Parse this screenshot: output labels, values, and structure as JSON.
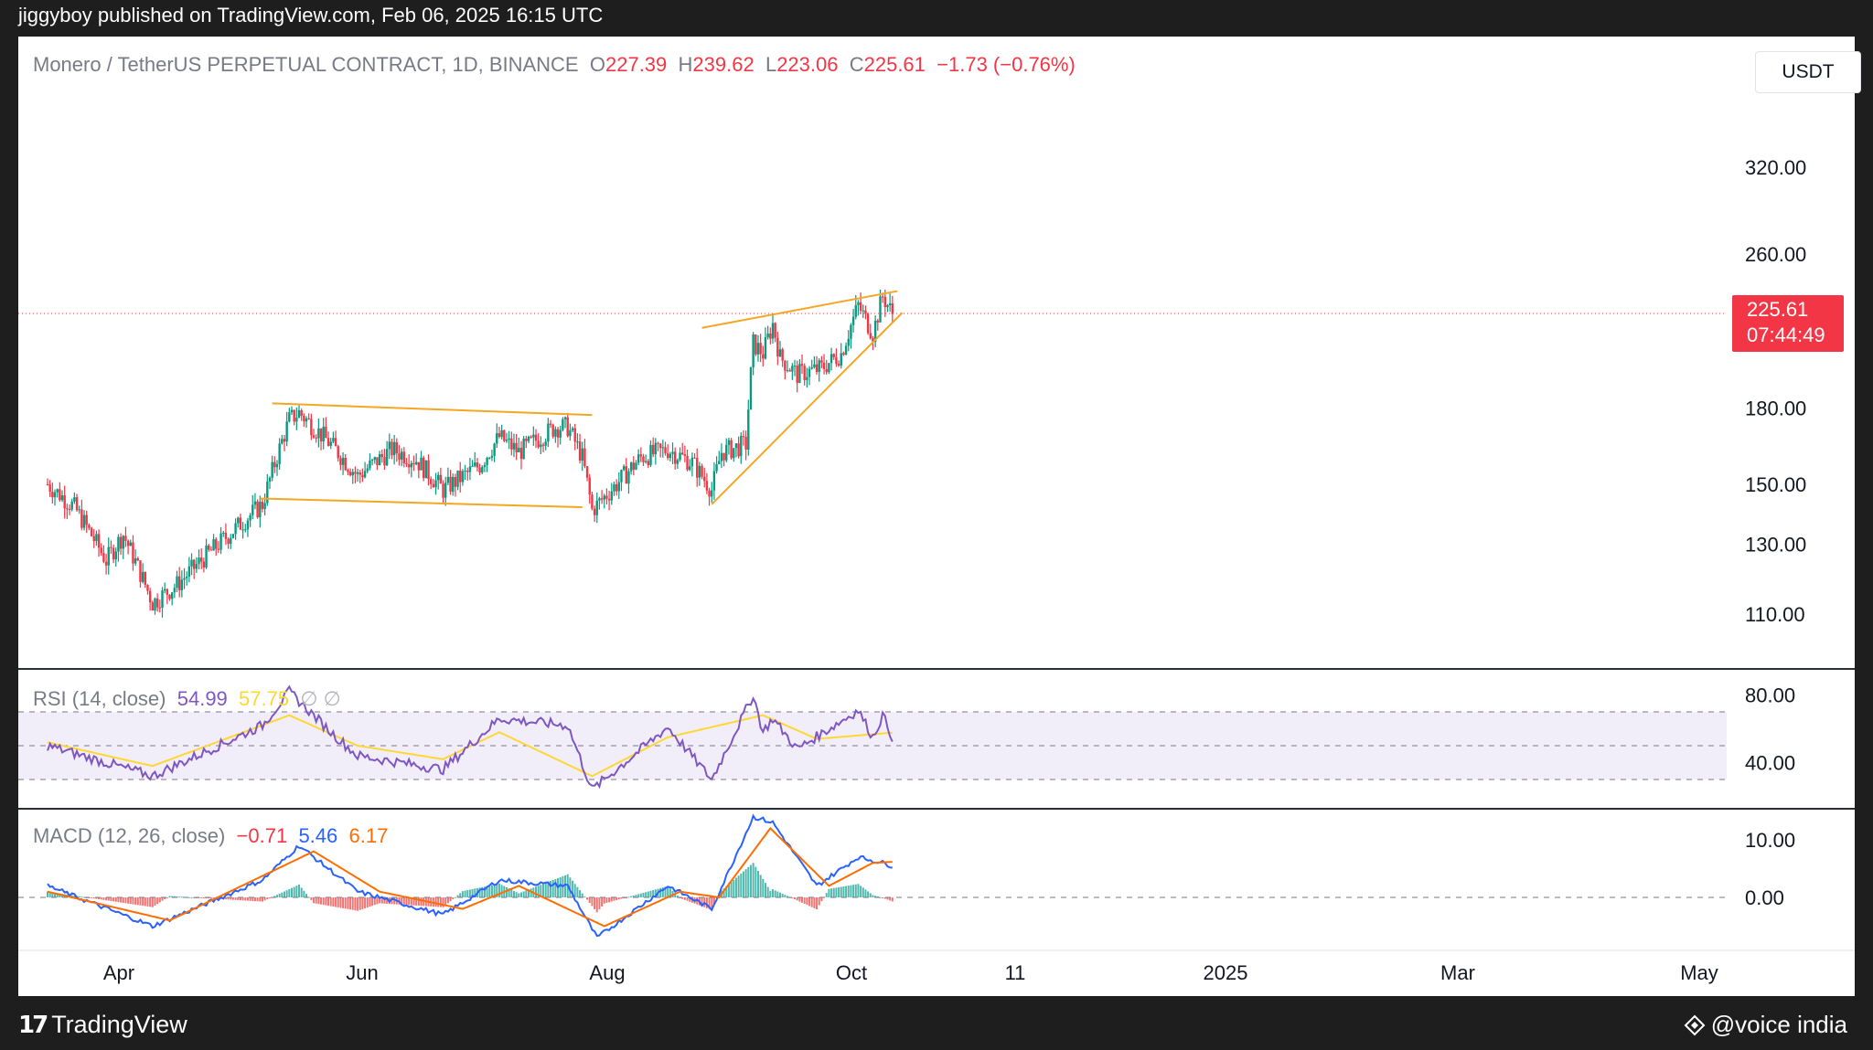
{
  "header": {
    "publisher_line": "jiggyboy published on TradingView.com, Feb 06, 2025 16:15 UTC"
  },
  "footer": {
    "brand": "TradingView",
    "credit": "@voice india"
  },
  "currency_button": "USDT",
  "price_legend": {
    "symbol": "Monero / TetherUS PERPETUAL CONTRACT, 1D, BINANCE",
    "o_label": "O",
    "o": "227.39",
    "h_label": "H",
    "h": "239.62",
    "l_label": "L",
    "l": "223.06",
    "c_label": "C",
    "c": "225.61",
    "change": "−1.73 (−0.76%)"
  },
  "rsi_legend": {
    "label": "RSI (14, close)",
    "rsi": "54.99",
    "sma": "57.75",
    "extra": "∅ ∅"
  },
  "macd_legend": {
    "label": "MACD (12, 26, close)",
    "hist": "−0.71",
    "macd": "5.46",
    "signal": "6.17"
  },
  "last_price_tag": {
    "price": "225.61",
    "countdown": "07:44:49"
  },
  "colors": {
    "up": "#089981",
    "down": "#f23645",
    "trendline": "#f5a623",
    "rsi": "#7e57c2",
    "rsi_ma": "#fdd835",
    "macd": "#2962ff",
    "signal": "#ff6d00"
  },
  "chart_data": [
    {
      "type": "candlestick",
      "price_axis": {
        "scale": "log",
        "ticks": [
          "320.00",
          "260.00",
          "180.00",
          "150.00",
          "130.00",
          "110.00"
        ]
      },
      "time_axis": [
        "Apr",
        "Jun",
        "Aug",
        "Oct",
        "11",
        "2025",
        "Mar",
        "May"
      ],
      "series": [
        {
          "name": "Monero / TetherUS PERPETUAL CONTRACT, 1D, BINANCE",
          "keypoints": [
            {
              "date": "2024-03-01",
              "close": 150
            },
            {
              "date": "2024-03-12",
              "close": 142
            },
            {
              "date": "2024-03-25",
              "close": 125
            },
            {
              "date": "2024-04-01",
              "close": 133
            },
            {
              "date": "2024-04-13",
              "close": 113
            },
            {
              "date": "2024-04-23",
              "close": 118
            },
            {
              "date": "2024-05-10",
              "close": 130
            },
            {
              "date": "2024-05-28",
              "close": 143
            },
            {
              "date": "2024-06-08",
              "close": 175
            },
            {
              "date": "2024-06-12",
              "close": 178
            },
            {
              "date": "2024-06-25",
              "close": 165
            },
            {
              "date": "2024-07-06",
              "close": 153
            },
            {
              "date": "2024-07-20",
              "close": 163
            },
            {
              "date": "2024-07-30",
              "close": 159
            },
            {
              "date": "2024-08-10",
              "close": 148
            },
            {
              "date": "2024-08-25",
              "close": 157
            },
            {
              "date": "2024-09-02",
              "close": 168
            },
            {
              "date": "2024-09-10",
              "close": 162
            },
            {
              "date": "2024-09-25",
              "close": 172
            },
            {
              "date": "2024-09-30",
              "close": 172
            },
            {
              "date": "2024-10-06",
              "close": 160
            },
            {
              "date": "2024-10-10",
              "close": 141
            },
            {
              "date": "2024-10-20",
              "close": 150
            },
            {
              "date": "2024-10-30",
              "close": 160
            },
            {
              "date": "2024-11-10",
              "close": 163
            },
            {
              "date": "2024-11-20",
              "close": 158
            },
            {
              "date": "2024-11-28",
              "close": 148
            },
            {
              "date": "2024-12-02",
              "close": 162
            },
            {
              "date": "2024-12-12",
              "close": 165
            },
            {
              "date": "2024-12-15",
              "close": 210
            },
            {
              "date": "2024-12-19",
              "close": 205
            },
            {
              "date": "2024-12-23",
              "close": 220
            },
            {
              "date": "2024-12-26",
              "close": 203
            },
            {
              "date": "2025-01-02",
              "close": 195
            },
            {
              "date": "2025-01-12",
              "close": 198
            },
            {
              "date": "2025-01-20",
              "close": 205
            },
            {
              "date": "2025-01-27",
              "close": 230
            },
            {
              "date": "2025-02-02",
              "close": 215
            },
            {
              "date": "2025-02-06",
              "close": 235
            },
            {
              "date": "2025-02-10",
              "close": 225.61
            }
          ]
        }
      ],
      "trendlines": [
        {
          "from": {
            "date": "2024-06-01",
            "price": 182
          },
          "to": {
            "date": "2024-10-10",
            "price": 177
          }
        },
        {
          "from": {
            "date": "2024-05-27",
            "price": 145
          },
          "to": {
            "date": "2024-10-06",
            "price": 142
          }
        },
        {
          "from": {
            "date": "2024-11-24",
            "price": 218
          },
          "to": {
            "date": "2025-02-12",
            "price": 238
          }
        },
        {
          "from": {
            "date": "2024-11-28",
            "price": 143
          },
          "to": {
            "date": "2025-02-14",
            "price": 226
          }
        }
      ]
    },
    {
      "type": "line",
      "title": "RSI (14, close)",
      "ticks": [
        "80.00",
        "40.00"
      ],
      "bands": [
        70,
        50,
        30
      ],
      "series": [
        {
          "name": "RSI",
          "keypoints": [
            {
              "date": "2024-03-01",
              "value": 50
            },
            {
              "date": "2024-04-13",
              "value": 32
            },
            {
              "date": "2024-05-28",
              "value": 62
            },
            {
              "date": "2024-06-08",
              "value": 82
            },
            {
              "date": "2024-06-25",
              "value": 58
            },
            {
              "date": "2024-07-06",
              "value": 44
            },
            {
              "date": "2024-08-10",
              "value": 36
            },
            {
              "date": "2024-09-02",
              "value": 66
            },
            {
              "date": "2024-09-30",
              "value": 62
            },
            {
              "date": "2024-10-10",
              "value": 24
            },
            {
              "date": "2024-11-10",
              "value": 61
            },
            {
              "date": "2024-11-28",
              "value": 30
            },
            {
              "date": "2024-12-15",
              "value": 80
            },
            {
              "date": "2024-12-19",
              "value": 58
            },
            {
              "date": "2024-12-23",
              "value": 66
            },
            {
              "date": "2025-01-02",
              "value": 48
            },
            {
              "date": "2025-01-27",
              "value": 71
            },
            {
              "date": "2025-02-02",
              "value": 55
            },
            {
              "date": "2025-02-06",
              "value": 68
            },
            {
              "date": "2025-02-10",
              "value": 54.99
            }
          ]
        },
        {
          "name": "RSI-based MA",
          "keypoints": [
            {
              "date": "2024-03-01",
              "value": 52
            },
            {
              "date": "2024-04-13",
              "value": 38
            },
            {
              "date": "2024-06-08",
              "value": 68
            },
            {
              "date": "2024-07-06",
              "value": 50
            },
            {
              "date": "2024-08-10",
              "value": 42
            },
            {
              "date": "2024-09-02",
              "value": 58
            },
            {
              "date": "2024-10-10",
              "value": 32
            },
            {
              "date": "2024-11-10",
              "value": 55
            },
            {
              "date": "2024-12-19",
              "value": 68
            },
            {
              "date": "2025-01-10",
              "value": 54
            },
            {
              "date": "2025-02-10",
              "value": 57.75
            }
          ]
        }
      ]
    },
    {
      "type": "line",
      "title": "MACD (12, 26, close)",
      "ticks": [
        "10.00",
        "0.00"
      ],
      "series": [
        {
          "name": "MACD",
          "keypoints": [
            {
              "date": "2024-03-01",
              "value": 2
            },
            {
              "date": "2024-04-13",
              "value": -5
            },
            {
              "date": "2024-05-28",
              "value": 3
            },
            {
              "date": "2024-06-12",
              "value": 9
            },
            {
              "date": "2024-07-06",
              "value": 1
            },
            {
              "date": "2024-08-10",
              "value": -3
            },
            {
              "date": "2024-09-02",
              "value": 3
            },
            {
              "date": "2024-09-30",
              "value": 2
            },
            {
              "date": "2024-10-12",
              "value": -7
            },
            {
              "date": "2024-11-10",
              "value": 2
            },
            {
              "date": "2024-11-28",
              "value": -2
            },
            {
              "date": "2024-12-15",
              "value": 14
            },
            {
              "date": "2024-12-23",
              "value": 13
            },
            {
              "date": "2025-01-10",
              "value": 2
            },
            {
              "date": "2025-01-27",
              "value": 7
            },
            {
              "date": "2025-02-06",
              "value": 6
            },
            {
              "date": "2025-02-10",
              "value": 5.46
            }
          ]
        },
        {
          "name": "Signal",
          "keypoints": [
            {
              "date": "2024-03-01",
              "value": 1
            },
            {
              "date": "2024-04-20",
              "value": -4
            },
            {
              "date": "2024-06-18",
              "value": 8
            },
            {
              "date": "2024-07-15",
              "value": 1
            },
            {
              "date": "2024-08-18",
              "value": -2
            },
            {
              "date": "2024-09-10",
              "value": 2
            },
            {
              "date": "2024-10-15",
              "value": -5
            },
            {
              "date": "2024-11-15",
              "value": 1
            },
            {
              "date": "2024-12-01",
              "value": 0
            },
            {
              "date": "2024-12-22",
              "value": 12
            },
            {
              "date": "2025-01-15",
              "value": 2
            },
            {
              "date": "2025-02-02",
              "value": 6
            },
            {
              "date": "2025-02-10",
              "value": 6.17
            }
          ]
        }
      ]
    }
  ]
}
